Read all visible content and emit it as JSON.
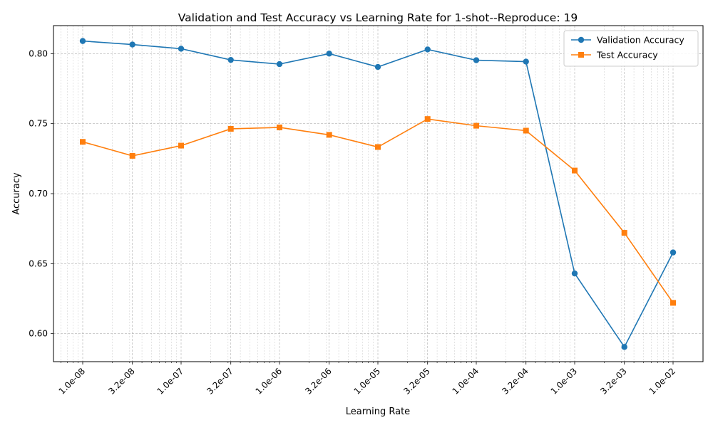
{
  "chart_data": {
    "type": "line",
    "title": "Validation and Test Accuracy vs Learning Rate for 1-shot--Reproduce: 19",
    "xlabel": "Learning Rate",
    "ylabel": "Accuracy",
    "xscale": "log",
    "x": [
      1e-08,
      3.2e-08,
      1e-07,
      3.2e-07,
      1e-06,
      3.2e-06,
      1e-05,
      3.2e-05,
      0.0001,
      0.00032,
      0.001,
      0.0032,
      0.01
    ],
    "xtick_labels": [
      "1.0e-08",
      "3.2e-08",
      "1.0e-07",
      "3.2e-07",
      "1.0e-06",
      "3.2e-06",
      "1.0e-05",
      "3.2e-05",
      "1.0e-04",
      "3.2e-04",
      "1.0e-03",
      "3.2e-03",
      "1.0e-02"
    ],
    "yticks": [
      0.6,
      0.65,
      0.7,
      0.75,
      0.8
    ],
    "ytick_labels": [
      "0.60",
      "0.65",
      "0.70",
      "0.75",
      "0.80"
    ],
    "ylim": [
      0.58,
      0.82
    ],
    "grid": true,
    "legend_position": "top-right",
    "series": [
      {
        "name": "Validation Accuracy",
        "color": "#1f77b4",
        "marker": "circle",
        "values": [
          0.809,
          0.8065,
          0.8035,
          0.7955,
          0.7925,
          0.8,
          0.7905,
          0.803,
          0.7953,
          0.7943,
          0.643,
          0.5905,
          0.658
        ]
      },
      {
        "name": "Test Accuracy",
        "color": "#ff7f0e",
        "marker": "square",
        "values": [
          0.737,
          0.727,
          0.7343,
          0.7463,
          0.7473,
          0.742,
          0.7333,
          0.7533,
          0.7485,
          0.745,
          0.7165,
          0.672,
          0.622
        ]
      }
    ]
  }
}
